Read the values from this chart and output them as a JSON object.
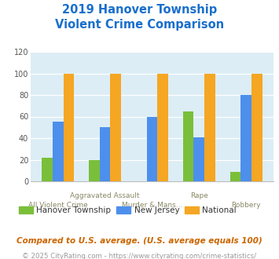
{
  "title": "2019 Hanover Township\nViolent Crime Comparison",
  "hanover": [
    22,
    20,
    0,
    65,
    9
  ],
  "nj": [
    55,
    50,
    60,
    41,
    80
  ],
  "national": [
    100,
    100,
    100,
    100,
    100
  ],
  "colors": {
    "hanover": "#7abf3a",
    "nj": "#4d8fec",
    "national": "#f5a623"
  },
  "ylim": [
    0,
    120
  ],
  "yticks": [
    0,
    20,
    40,
    60,
    80,
    100,
    120
  ],
  "title_color": "#1a6fcc",
  "background_color": "#dcedf5",
  "legend_labels": [
    "Hanover Township",
    "New Jersey",
    "National"
  ],
  "x_top": [
    "",
    "Aggravated Assault",
    "",
    "Rape",
    ""
  ],
  "x_bot": [
    "All Violent Crime",
    "",
    "Murder & Mans...",
    "",
    "Robbery"
  ],
  "footnote1": "Compared to U.S. average. (U.S. average equals 100)",
  "footnote2": "© 2025 CityRating.com - https://www.cityrating.com/crime-statistics/",
  "footnote1_color": "#cc6600",
  "footnote2_color": "#999999",
  "footnote2_link_color": "#4488cc"
}
